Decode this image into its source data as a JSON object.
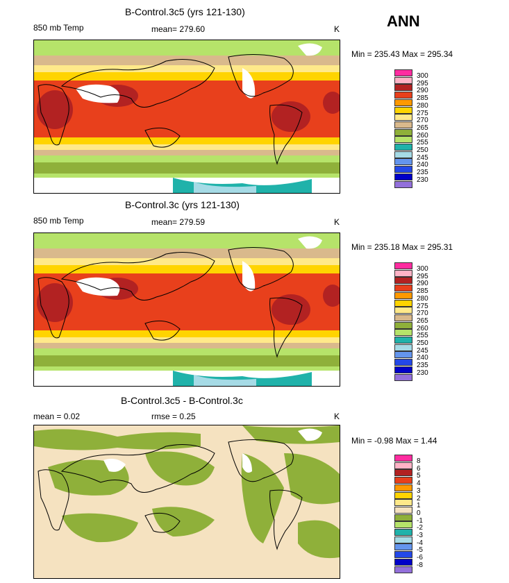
{
  "header": {
    "season": "ANN"
  },
  "panels": [
    {
      "title": "B-Control.3c5 (yrs 121-130)",
      "left_label": "850 mb Temp",
      "center_label": "mean= 279.60",
      "unit": "K",
      "minmax": "Min = 235.43 Max = 295.34",
      "levels": [
        "300",
        "295",
        "290",
        "285",
        "280",
        "275",
        "270",
        "265",
        "260",
        "255",
        "250",
        "245",
        "240",
        "235",
        "230"
      ]
    },
    {
      "title": "B-Control.3c (yrs 121-130)",
      "left_label": "850 mb Temp",
      "center_label": "mean= 279.59",
      "unit": "K",
      "minmax": "Min = 235.18 Max = 295.31",
      "levels": [
        "300",
        "295",
        "290",
        "285",
        "280",
        "275",
        "270",
        "265",
        "260",
        "255",
        "250",
        "245",
        "240",
        "235",
        "230"
      ]
    },
    {
      "title": "B-Control.3c5 - B-Control.3c",
      "left_label": "mean =     0.02",
      "center_label": "rmse =     0.25",
      "unit": "K",
      "minmax": "Min =  -0.98 Max =    1.44",
      "levels": [
        "8",
        "6",
        "5",
        "4",
        "3",
        "2",
        "1",
        "0",
        "-1",
        "-2",
        "-3",
        "-4",
        "-5",
        "-6",
        "-8"
      ]
    }
  ],
  "colors": {
    "legend": [
      "#ff2ca0",
      "#ffb3c6",
      "#b22222",
      "#e8401c",
      "#ff9900",
      "#ffd400",
      "#ffe98a",
      "#d9b98c",
      "#8fb03a",
      "#b6e36a",
      "#20b2aa",
      "#a6dbe6",
      "#6495ed",
      "#2348e8",
      "#0000c8",
      "#9370db"
    ]
  }
}
